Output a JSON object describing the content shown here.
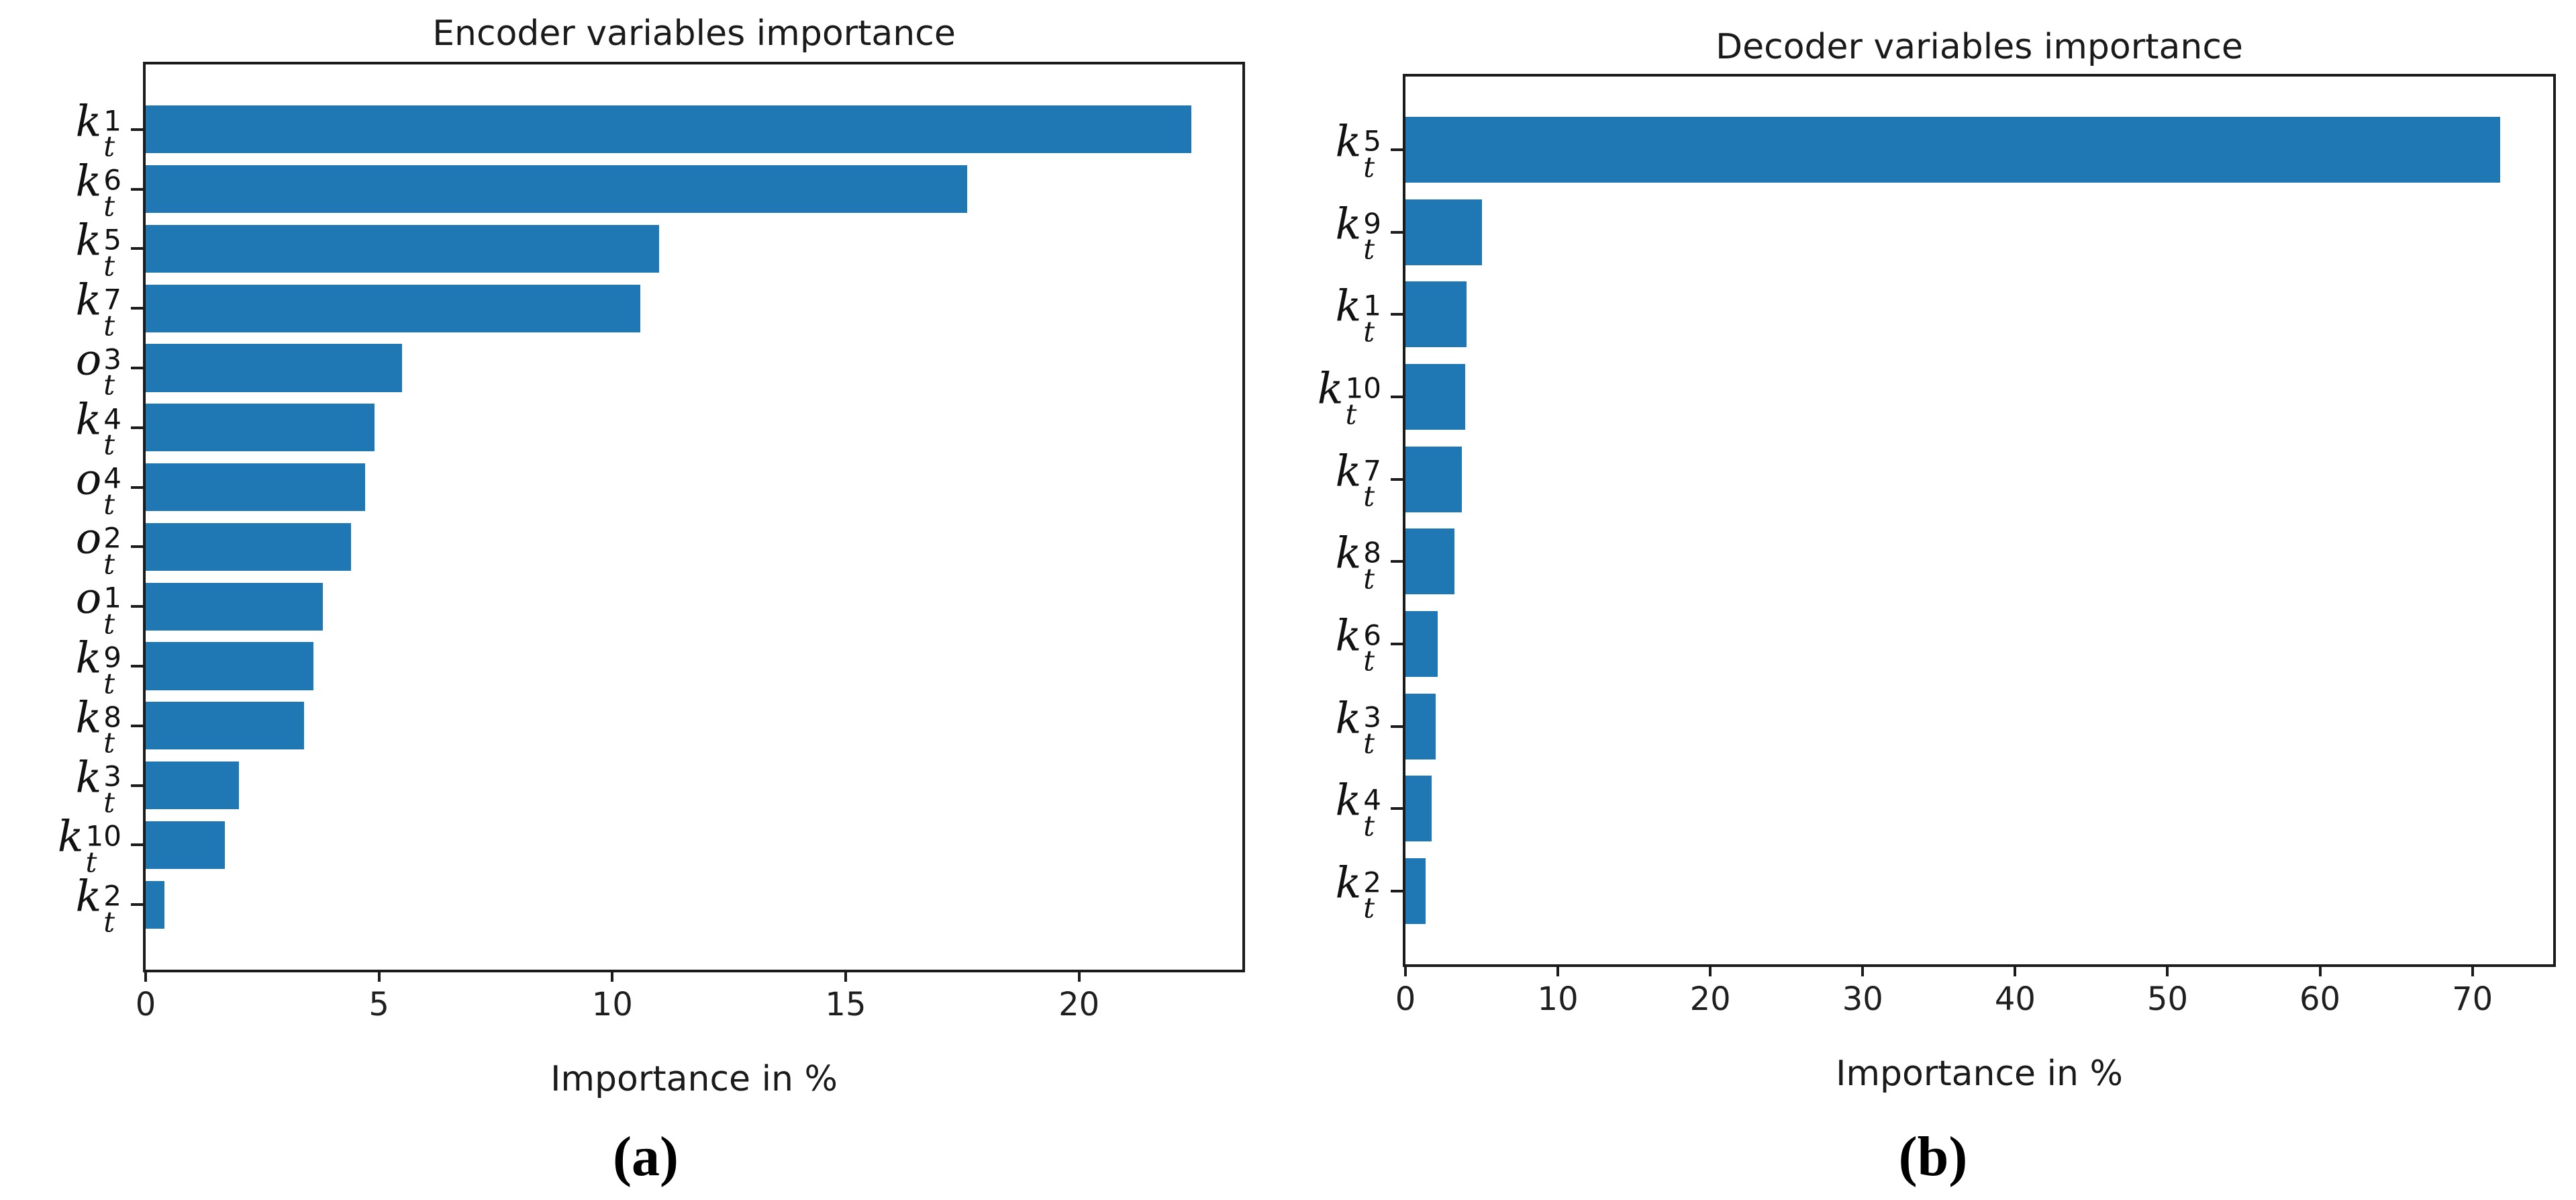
{
  "figure": {
    "background_color": "#ffffff",
    "bar_color": "#1f77b4",
    "axis_color": "#1b1b1b"
  },
  "captions": {
    "a": "(a)",
    "b": "(b)"
  },
  "chart_data": [
    {
      "id": "encoder",
      "type": "bar",
      "orientation": "horizontal",
      "title": "Encoder variables importance",
      "xlabel": "Importance in %",
      "grid": false,
      "legend": null,
      "xlim": [
        0,
        23.5
      ],
      "xticks": [
        0,
        5,
        10,
        15,
        20
      ],
      "categories": [
        {
          "base": "k",
          "sup": "1",
          "sub": "t",
          "text": "k_t^1"
        },
        {
          "base": "k",
          "sup": "6",
          "sub": "t",
          "text": "k_t^6"
        },
        {
          "base": "k",
          "sup": "5",
          "sub": "t",
          "text": "k_t^5"
        },
        {
          "base": "k",
          "sup": "7",
          "sub": "t",
          "text": "k_t^7"
        },
        {
          "base": "o",
          "sup": "3",
          "sub": "t",
          "text": "o_t^3"
        },
        {
          "base": "k",
          "sup": "4",
          "sub": "t",
          "text": "k_t^4"
        },
        {
          "base": "o",
          "sup": "4",
          "sub": "t",
          "text": "o_t^4"
        },
        {
          "base": "o",
          "sup": "2",
          "sub": "t",
          "text": "o_t^2"
        },
        {
          "base": "o",
          "sup": "1",
          "sub": "t",
          "text": "o_t^1"
        },
        {
          "base": "k",
          "sup": "9",
          "sub": "t",
          "text": "k_t^9"
        },
        {
          "base": "k",
          "sup": "8",
          "sub": "t",
          "text": "k_t^8"
        },
        {
          "base": "k",
          "sup": "3",
          "sub": "t",
          "text": "k_t^3"
        },
        {
          "base": "k",
          "sup": "10",
          "sub": "t",
          "text": "k_t^10"
        },
        {
          "base": "k",
          "sup": "2",
          "sub": "t",
          "text": "k_t^2"
        }
      ],
      "values": [
        22.4,
        17.6,
        11.0,
        10.6,
        5.5,
        4.9,
        4.7,
        4.4,
        3.8,
        3.6,
        3.4,
        2.0,
        1.7,
        0.4
      ]
    },
    {
      "id": "decoder",
      "type": "bar",
      "orientation": "horizontal",
      "title": "Decoder variables importance",
      "xlabel": "Importance in %",
      "grid": false,
      "legend": null,
      "xlim": [
        0,
        75.3
      ],
      "xticks": [
        0,
        10,
        20,
        30,
        40,
        50,
        60,
        70
      ],
      "categories": [
        {
          "base": "k",
          "sup": "5",
          "sub": "t",
          "text": "k_t^5"
        },
        {
          "base": "k",
          "sup": "9",
          "sub": "t",
          "text": "k_t^9"
        },
        {
          "base": "k",
          "sup": "1",
          "sub": "t",
          "text": "k_t^1"
        },
        {
          "base": "k",
          "sup": "10",
          "sub": "t",
          "text": "k_t^10"
        },
        {
          "base": "k",
          "sup": "7",
          "sub": "t",
          "text": "k_t^7"
        },
        {
          "base": "k",
          "sup": "8",
          "sub": "t",
          "text": "k_t^8"
        },
        {
          "base": "k",
          "sup": "6",
          "sub": "t",
          "text": "k_t^6"
        },
        {
          "base": "k",
          "sup": "3",
          "sub": "t",
          "text": "k_t^3"
        },
        {
          "base": "k",
          "sup": "4",
          "sub": "t",
          "text": "k_t^4"
        },
        {
          "base": "k",
          "sup": "2",
          "sub": "t",
          "text": "k_t^2"
        }
      ],
      "values": [
        71.8,
        5.0,
        4.0,
        3.9,
        3.7,
        3.2,
        2.1,
        2.0,
        1.7,
        1.3
      ]
    }
  ]
}
